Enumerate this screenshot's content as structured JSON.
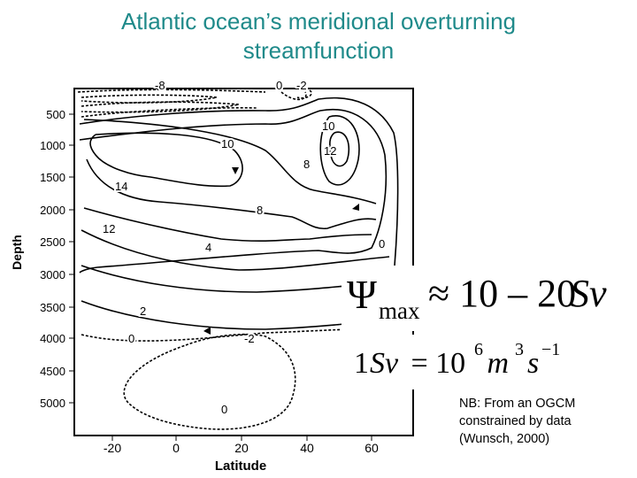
{
  "title": {
    "line1": "Atlantic ocean’s meridional overturning",
    "line2": "streamfunction"
  },
  "figure": {
    "x_axis_label": "Latitude",
    "y_axis_label": "Depth",
    "x_ticks": [
      "-20",
      "0",
      "20",
      "40",
      "60"
    ],
    "y_ticks": [
      "500",
      "1000",
      "1500",
      "2000",
      "2500",
      "3000",
      "3500",
      "4000",
      "4500",
      "5000"
    ],
    "contour_labels": [
      "-8",
      "0",
      "-2",
      "10",
      "12",
      "10",
      "14",
      "8",
      "12",
      "8",
      "4",
      "0",
      "2",
      "0",
      "-2",
      "0"
    ]
  },
  "formulas": {
    "psi_max": {
      "symbol": "Ψ",
      "subscript": "max",
      "relation": "≈ 10 – 20",
      "unit": "Sv"
    },
    "sverdrup": {
      "lhs_num": "1",
      "lhs_unit": "Sv",
      "eq": " = 10",
      "exp6": "6",
      "m": " m",
      "exp3": "3",
      "s": "s",
      "expm1": "−1"
    }
  },
  "note": {
    "line1": "NB: From an OGCM",
    "line2": "constrained by data",
    "line3": "(Wunsch, 2000)"
  }
}
